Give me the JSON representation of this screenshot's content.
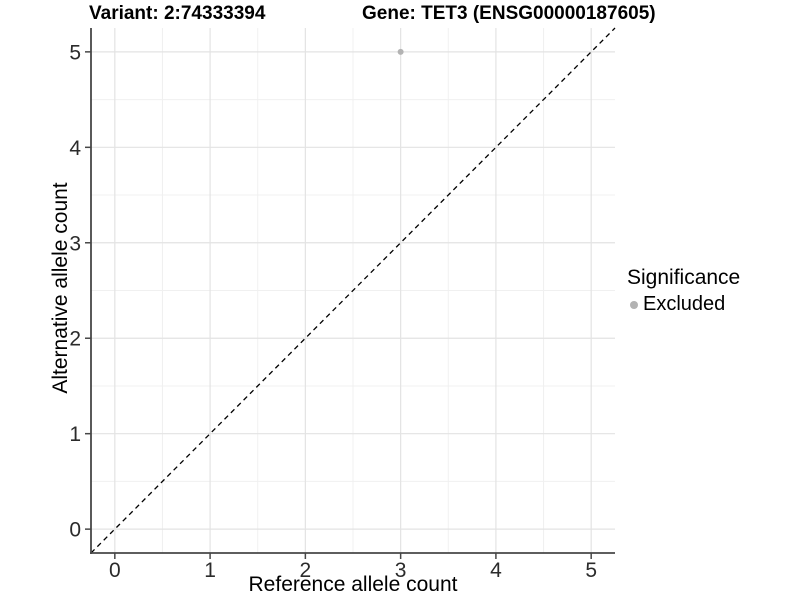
{
  "chart_data": {
    "type": "scatter",
    "titles": {
      "left": "Variant: 2:74333394",
      "right": "Gene: TET3 (ENSG00000187605)"
    },
    "xlabel": "Reference allele count",
    "ylabel": "Alternative allele count",
    "xlim": [
      -0.25,
      5.25
    ],
    "ylim": [
      -0.25,
      5.25
    ],
    "x_ticks": [
      0,
      1,
      2,
      3,
      4,
      5
    ],
    "y_ticks": [
      0,
      1,
      2,
      3,
      4,
      5
    ],
    "x_minor_ticks": [
      0.5,
      1.5,
      2.5,
      3.5,
      4.5
    ],
    "y_minor_ticks": [
      0.5,
      1.5,
      2.5,
      3.5,
      4.5
    ],
    "grid": "major+minor",
    "points": [
      {
        "x": 3,
        "y": 5,
        "significance": "Excluded"
      }
    ],
    "identity_line": {
      "style": "dashed",
      "from": [
        -0.25,
        -0.25
      ],
      "to": [
        5.25,
        5.25
      ],
      "color": "#000000"
    },
    "legend": {
      "title": "Significance",
      "position": "right",
      "entries": [
        {
          "label": "Excluded",
          "color": "#b3b3b3",
          "marker": "circle"
        }
      ]
    },
    "colors": {
      "point": "#b3b3b3",
      "grid_major": "#e3e3e3",
      "grid_minor": "#f0f0f0",
      "axis_line": "#474747",
      "tick_label": "#2b2b2b",
      "title": "#000000",
      "background": "#ffffff"
    }
  }
}
